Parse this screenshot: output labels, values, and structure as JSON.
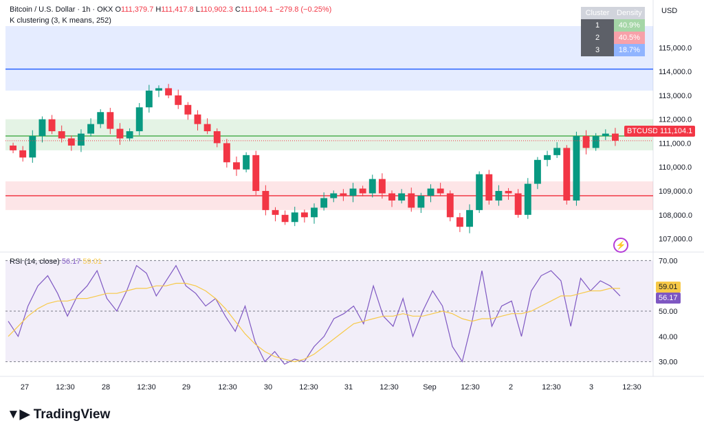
{
  "header": {
    "symbol": "Bitcoin / U.S. Dollar · 1h · OKX",
    "o_label": "O",
    "o": "111,379.7",
    "h_label": "H",
    "h": "111,417.8",
    "l_label": "L",
    "l": "110,902.3",
    "c_label": "C",
    "c": "111,104.1",
    "change": "−279.8 (−0.25%)",
    "indicator": "K clustering (3, K means, 252)"
  },
  "currency": "USD",
  "cluster_table": {
    "headers": [
      "Cluster",
      "Density"
    ],
    "rows": [
      {
        "cluster": "1",
        "density": "40.9%",
        "color": "#4caf50"
      },
      {
        "cluster": "2",
        "density": "40.5%",
        "color": "#f23645"
      },
      {
        "cluster": "3",
        "density": "18.7%",
        "color": "#2962ff"
      }
    ]
  },
  "price_tags": {
    "symbol_tag": "BTCUSD",
    "last_price": "111,104.1"
  },
  "rsi": {
    "label": "RSI (14, close)",
    "rsi_value": "56.17",
    "ma_value": "59.01"
  },
  "branding": {
    "name": "TradingView"
  },
  "chart_data": [
    {
      "type": "candlestick",
      "title": "Bitcoin / U.S. Dollar · 1h · OKX",
      "ylim": [
        106500,
        115900
      ],
      "y_ticks": [
        "115,000.0",
        "114,000.0",
        "113,000.0",
        "112,000.0",
        "111,000.0",
        "110,000.0",
        "109,000.0",
        "108,000.0",
        "107,000.0"
      ],
      "y_tick_values": [
        115000,
        114000,
        113000,
        112000,
        111000,
        110000,
        109000,
        108000,
        107000
      ],
      "x_ticks": [
        "27",
        "12:30",
        "28",
        "12:30",
        "29",
        "12:30",
        "30",
        "12:30",
        "31",
        "12:30",
        "Sep",
        "12:30",
        "2",
        "12:30",
        "3",
        "12:30"
      ],
      "cluster_zones": [
        {
          "cluster": 3,
          "low": 113200,
          "high": 115900,
          "center": 114100,
          "color": "#2962ff"
        },
        {
          "cluster": 1,
          "low": 110700,
          "high": 112000,
          "center": 111300,
          "color": "#4caf50"
        },
        {
          "cluster": 2,
          "low": 108200,
          "high": 109400,
          "center": 108800,
          "color": "#f23645"
        }
      ],
      "close_path": [
        110700,
        110400,
        111300,
        112000,
        111500,
        111200,
        110900,
        111400,
        111800,
        112300,
        111600,
        111200,
        111500,
        112500,
        113200,
        113300,
        113000,
        112600,
        112200,
        111800,
        111500,
        111000,
        110200,
        109900,
        110500,
        109000,
        108200,
        108000,
        107700,
        108100,
        107900,
        108300,
        108700,
        108900,
        108800,
        109100,
        108900,
        109500,
        108900,
        108600,
        108900,
        108300,
        108800,
        109100,
        108900,
        107900,
        107500,
        108200,
        109700,
        108600,
        109000,
        108900,
        108000,
        109300,
        110300,
        110500,
        110800,
        108600,
        111300,
        110800,
        111300,
        111400,
        111104
      ]
    },
    {
      "type": "line",
      "title": "RSI (14, close)",
      "ylim": [
        25,
        72
      ],
      "y_ticks": [
        "70.00",
        "50.00",
        "40.00",
        "30.00"
      ],
      "y_tick_values": [
        70,
        50,
        40,
        30
      ],
      "series": [
        {
          "name": "RSI",
          "color": "#7e57c2",
          "values": [
            46,
            40,
            52,
            60,
            64,
            57,
            48,
            56,
            60,
            66,
            55,
            50,
            58,
            68,
            65,
            56,
            62,
            68,
            60,
            57,
            52,
            55,
            48,
            42,
            52,
            38,
            30,
            34,
            29,
            31,
            30,
            36,
            40,
            47,
            49,
            52,
            45,
            60,
            48,
            44,
            55,
            40,
            50,
            58,
            52,
            36,
            30,
            46,
            66,
            44,
            52,
            54,
            40,
            58,
            64,
            66,
            62,
            44,
            63,
            58,
            62,
            60,
            56
          ]
        },
        {
          "name": "RSI-based MA",
          "color": "#f7c948",
          "values": [
            40,
            44,
            48,
            51,
            53,
            54,
            54,
            55,
            55,
            56,
            57,
            57,
            58,
            59,
            59,
            60,
            60,
            61,
            61,
            60,
            58,
            55,
            51,
            46,
            41,
            37,
            34,
            32,
            31,
            30,
            31,
            33,
            36,
            39,
            42,
            45,
            46,
            47,
            48,
            48,
            49,
            48,
            48,
            49,
            50,
            49,
            47,
            46,
            47,
            47,
            48,
            49,
            49,
            50,
            52,
            54,
            56,
            56,
            57,
            58,
            58,
            59,
            59
          ]
        }
      ]
    }
  ]
}
